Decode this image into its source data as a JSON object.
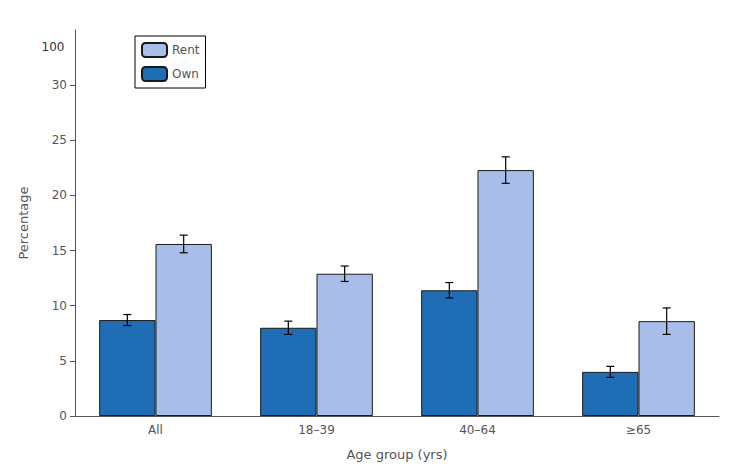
{
  "chart_data": {
    "type": "bar",
    "xlabel": "Age group (yrs)",
    "ylabel": "Percentage",
    "categories": [
      "All",
      "18–39",
      "40–64",
      "≥65"
    ],
    "series": [
      {
        "name": "Own",
        "color": "#1f6eb5",
        "values": [
          8.7,
          8.0,
          11.4,
          4.0
        ],
        "errors": [
          0.5,
          0.6,
          0.7,
          0.5
        ]
      },
      {
        "name": "Rent",
        "color": "#a8bee8",
        "values": [
          15.6,
          12.9,
          22.3,
          8.6
        ],
        "errors": [
          0.8,
          0.7,
          1.2,
          1.2
        ]
      }
    ],
    "ylim": [
      0,
      35
    ],
    "yticks": [
      0,
      5,
      10,
      15,
      20,
      25,
      30
    ],
    "grid": false,
    "legend": "upper left",
    "annotations": [
      {
        "text": "100",
        "y": 33.5
      }
    ]
  }
}
